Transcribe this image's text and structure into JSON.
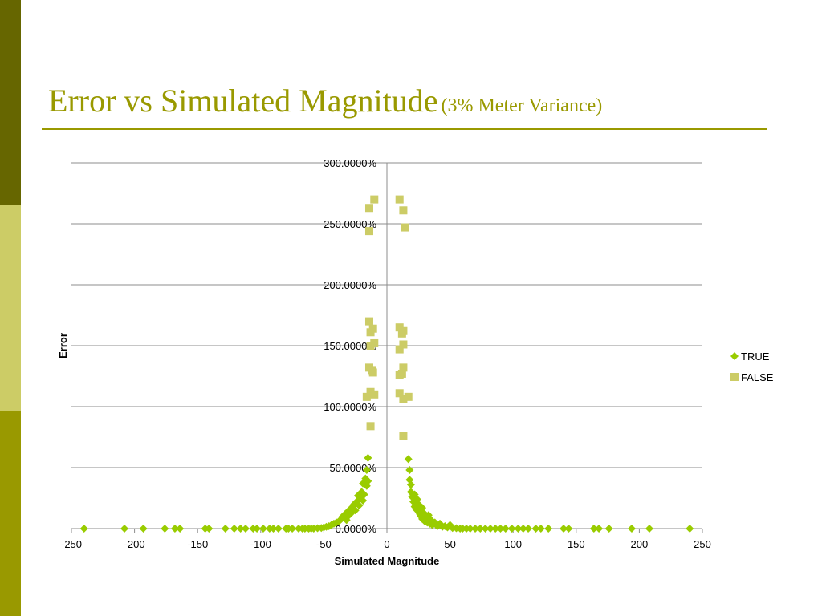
{
  "slide": {
    "title": "Error vs Simulated Magnitude",
    "subtitle": "(3% Meter Variance)",
    "colors": {
      "title": "#999900",
      "sidebar_top": "#666600",
      "sidebar_mid": "#cccc66",
      "sidebar_bottom": "#999900"
    }
  },
  "chart_data": {
    "type": "scatter",
    "xlabel": "Simulated Magnitude",
    "ylabel": "Error",
    "xlim": [
      -250,
      250
    ],
    "ylim": [
      0,
      300
    ],
    "xticks": [
      "-250",
      "-200",
      "-150",
      "-100",
      "-50",
      "0",
      "50",
      "100",
      "150",
      "200",
      "250"
    ],
    "yticks": [
      "0.0000%",
      "50.0000%",
      "100.0000%",
      "150.0000%",
      "200.0000%",
      "250.0000%",
      "300.0000%"
    ],
    "grid": "horizontal",
    "legend": "right",
    "series": [
      {
        "name": "TRUE",
        "marker": "diamond",
        "color": "#99cc00",
        "points": [
          [
            -240,
            0
          ],
          [
            -208,
            0
          ],
          [
            -193,
            0
          ],
          [
            -176,
            0
          ],
          [
            -168,
            0
          ],
          [
            -164,
            0
          ],
          [
            -144,
            0
          ],
          [
            -141,
            0
          ],
          [
            -128,
            0
          ],
          [
            -121,
            0
          ],
          [
            -116,
            0
          ],
          [
            -112,
            0
          ],
          [
            -106,
            0
          ],
          [
            -103,
            0
          ],
          [
            -98,
            0
          ],
          [
            -93,
            0
          ],
          [
            -90,
            0
          ],
          [
            -86,
            0
          ],
          [
            -80,
            0
          ],
          [
            -78,
            0
          ],
          [
            -75,
            0
          ],
          [
            -70,
            0
          ],
          [
            -67,
            0
          ],
          [
            -65,
            0
          ],
          [
            -62,
            0
          ],
          [
            -60,
            0
          ],
          [
            -58,
            0
          ],
          [
            -55,
            0.3
          ],
          [
            -52,
            0.5
          ],
          [
            -50,
            1
          ],
          [
            -48,
            1.5
          ],
          [
            -46,
            2
          ],
          [
            -44,
            3
          ],
          [
            -42,
            4
          ],
          [
            -40,
            5
          ],
          [
            -38,
            6
          ],
          [
            -36,
            8
          ],
          [
            -35,
            10
          ],
          [
            -34,
            9
          ],
          [
            -33,
            12
          ],
          [
            -32,
            7
          ],
          [
            -31,
            14
          ],
          [
            -30,
            11
          ],
          [
            -29,
            16
          ],
          [
            -28,
            13
          ],
          [
            -27,
            18
          ],
          [
            -26,
            20
          ],
          [
            -25,
            15
          ],
          [
            -24,
            22
          ],
          [
            -23,
            27
          ],
          [
            -22,
            19
          ],
          [
            -21,
            25
          ],
          [
            -20,
            30
          ],
          [
            -19,
            23
          ],
          [
            -19,
            37
          ],
          [
            -18,
            28
          ],
          [
            -17,
            41
          ],
          [
            -16,
            35
          ],
          [
            -16,
            48
          ],
          [
            -15,
            58
          ],
          [
            -15,
            39
          ],
          [
            17,
            57
          ],
          [
            18,
            48
          ],
          [
            18,
            40
          ],
          [
            19,
            36
          ],
          [
            19,
            30
          ],
          [
            20,
            26
          ],
          [
            21,
            22
          ],
          [
            22,
            28
          ],
          [
            22,
            18
          ],
          [
            23,
            16
          ],
          [
            24,
            24
          ],
          [
            25,
            14
          ],
          [
            25,
            20
          ],
          [
            26,
            12
          ],
          [
            27,
            10
          ],
          [
            28,
            17
          ],
          [
            28,
            8
          ],
          [
            29,
            13
          ],
          [
            30,
            6
          ],
          [
            31,
            9
          ],
          [
            32,
            5
          ],
          [
            33,
            11
          ],
          [
            34,
            4
          ],
          [
            35,
            7
          ],
          [
            36,
            3
          ],
          [
            38,
            5
          ],
          [
            40,
            2
          ],
          [
            42,
            4
          ],
          [
            44,
            1.5
          ],
          [
            46,
            2
          ],
          [
            48,
            1
          ],
          [
            50,
            3
          ],
          [
            52,
            0.5
          ],
          [
            55,
            0.3
          ],
          [
            58,
            0
          ],
          [
            60,
            0
          ],
          [
            63,
            0
          ],
          [
            66,
            0
          ],
          [
            70,
            0
          ],
          [
            74,
            0
          ],
          [
            78,
            0
          ],
          [
            82,
            0
          ],
          [
            86,
            0
          ],
          [
            90,
            0
          ],
          [
            94,
            0
          ],
          [
            99,
            0
          ],
          [
            104,
            0
          ],
          [
            108,
            0
          ],
          [
            112,
            0
          ],
          [
            118,
            0
          ],
          [
            122,
            0
          ],
          [
            128,
            0
          ],
          [
            140,
            0
          ],
          [
            144,
            0
          ],
          [
            164,
            0
          ],
          [
            168,
            0
          ],
          [
            176,
            0
          ],
          [
            194,
            0
          ],
          [
            208,
            0
          ],
          [
            240,
            0
          ]
        ]
      },
      {
        "name": "FALSE",
        "marker": "square",
        "color": "#cccc66",
        "points": [
          [
            -10,
            270
          ],
          [
            -14,
            263
          ],
          [
            -14,
            244
          ],
          [
            -14,
            170
          ],
          [
            -11,
            164
          ],
          [
            -13,
            161
          ],
          [
            -10,
            152
          ],
          [
            -13,
            150
          ],
          [
            -14,
            132
          ],
          [
            -12,
            130
          ],
          [
            -11,
            128
          ],
          [
            -13,
            112
          ],
          [
            -10,
            110
          ],
          [
            -16,
            108
          ],
          [
            -13,
            84
          ],
          [
            10,
            270
          ],
          [
            13,
            261
          ],
          [
            14,
            247
          ],
          [
            13,
            162
          ],
          [
            10,
            165
          ],
          [
            12,
            160
          ],
          [
            13,
            151
          ],
          [
            10,
            147
          ],
          [
            13,
            132
          ],
          [
            12,
            127
          ],
          [
            10,
            126
          ],
          [
            10,
            111
          ],
          [
            13,
            106
          ],
          [
            17,
            108
          ],
          [
            13,
            76
          ]
        ]
      }
    ]
  }
}
